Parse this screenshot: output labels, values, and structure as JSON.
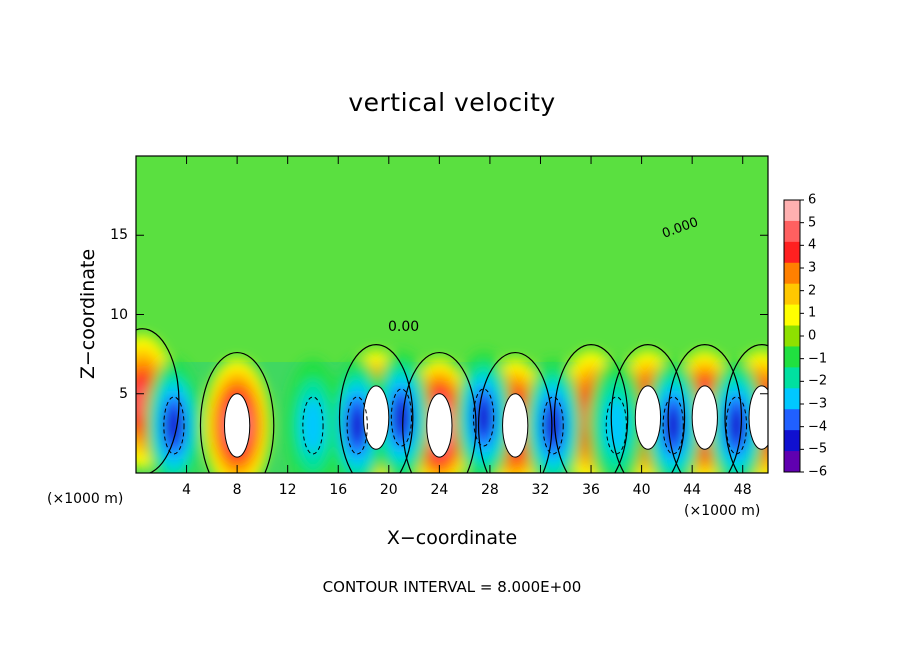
{
  "chart_data": {
    "type": "heatmap",
    "title": "vertical velocity",
    "xlabel": "X−coordinate",
    "ylabel": "Z−coordinate",
    "x_unit_label": "(×1000 m)",
    "x_ticks": [
      "4",
      "8",
      "12",
      "16",
      "20",
      "24",
      "28",
      "32",
      "36",
      "40",
      "44",
      "48"
    ],
    "y_ticks": [
      "5",
      "10",
      "15"
    ],
    "xlim": [
      0,
      50
    ],
    "ylim": [
      0,
      20
    ],
    "colorbar": {
      "labels": [
        "6",
        "5",
        "4",
        "3",
        "2",
        "1",
        "0",
        "−1",
        "−2",
        "−3",
        "−4",
        "−5",
        "−6"
      ],
      "colors": [
        "#ffb0b0",
        "#ff6060",
        "#ff2020",
        "#ff8000",
        "#ffc800",
        "#ffff00",
        "#8ee000",
        "#20e040",
        "#00e0a0",
        "#00c8ff",
        "#2060ff",
        "#1010d0",
        "#6000b0"
      ]
    },
    "contour_label": "0.00",
    "contour_label_2": "0.000",
    "updrafts": [
      {
        "x": 0.5,
        "z": 4.5,
        "amp": 5
      },
      {
        "x": 8,
        "z": 3,
        "amp": 6
      },
      {
        "x": 19,
        "z": 3.5,
        "amp": 6
      },
      {
        "x": 24,
        "z": 3,
        "amp": 7
      },
      {
        "x": 30,
        "z": 3,
        "amp": 6
      },
      {
        "x": 36,
        "z": 3.5,
        "amp": 5
      },
      {
        "x": 40.5,
        "z": 3.5,
        "amp": 6
      },
      {
        "x": 45,
        "z": 3.5,
        "amp": 7
      },
      {
        "x": 49.5,
        "z": 3.5,
        "amp": 6
      }
    ],
    "downdrafts": [
      {
        "x": 3,
        "z": 3,
        "amp": -5
      },
      {
        "x": 14,
        "z": 3,
        "amp": -3
      },
      {
        "x": 17.5,
        "z": 3,
        "amp": -5
      },
      {
        "x": 21,
        "z": 3.5,
        "amp": -5
      },
      {
        "x": 27.5,
        "z": 3.5,
        "amp": -5
      },
      {
        "x": 33,
        "z": 3,
        "amp": -5
      },
      {
        "x": 38,
        "z": 3,
        "amp": -3
      },
      {
        "x": 42.5,
        "z": 3,
        "amp": -5
      },
      {
        "x": 47.5,
        "z": 3,
        "amp": -5
      }
    ]
  },
  "footer": "CONTOUR INTERVAL =  8.000E+00"
}
